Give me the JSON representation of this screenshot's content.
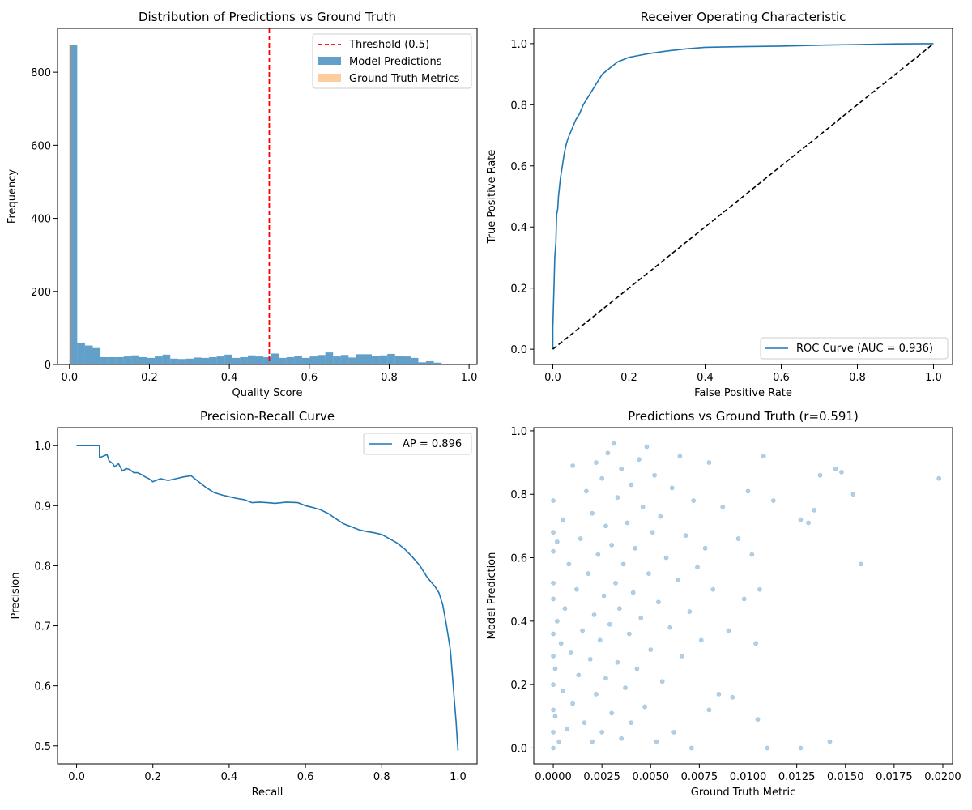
{
  "chart_data": [
    {
      "type": "bar",
      "title": "Distribution of Predictions vs Ground Truth",
      "xlabel": "Quality Score",
      "ylabel": "Frequency",
      "xlim": [
        -0.03,
        1.02
      ],
      "ylim": [
        0,
        920
      ],
      "xticks": [
        "0.0",
        "0.2",
        "0.4",
        "0.6",
        "0.8",
        "1.0"
      ],
      "yticks": [
        "0",
        "200",
        "400",
        "600",
        "800"
      ],
      "bin_width": 0.0194,
      "series": [
        {
          "name": "Model Predictions",
          "color": "#1f77b4",
          "bin_start": 0.0,
          "values": [
            875,
            60,
            52,
            45,
            20,
            20,
            20,
            22,
            25,
            20,
            18,
            22,
            27,
            16,
            15,
            16,
            19,
            18,
            20,
            22,
            27,
            18,
            20,
            25,
            22,
            20,
            30,
            18,
            20,
            24,
            18,
            22,
            26,
            33,
            22,
            26,
            19,
            28,
            28,
            23,
            25,
            29,
            24,
            22,
            18,
            6,
            9,
            5
          ]
        },
        {
          "name": "Ground Truth Metrics",
          "color": "#ff7f0e",
          "bin_start": 0.0,
          "bin_width": 0.0041,
          "values": [
            875
          ]
        }
      ],
      "reference_line": {
        "label": "Threshold (0.5)",
        "x": 0.5,
        "color": "#ff0000"
      },
      "legend": "upper right",
      "grid": false
    },
    {
      "type": "line",
      "title": "Receiver Operating Characteristic",
      "xlabel": "False Positive Rate",
      "ylabel": "True Positive Rate",
      "xlim": [
        -0.05,
        1.05
      ],
      "ylim": [
        -0.05,
        1.05
      ],
      "xticks": [
        "0.0",
        "0.2",
        "0.4",
        "0.6",
        "0.8",
        "1.0"
      ],
      "yticks": [
        "0.0",
        "0.2",
        "0.4",
        "0.6",
        "0.8",
        "1.0"
      ],
      "series": [
        {
          "name": "ROC Curve (AUC = 0.936)",
          "color": "#1f77b4",
          "x": [
            0,
            0,
            0.003,
            0.005,
            0.008,
            0.01,
            0.013,
            0.015,
            0.02,
            0.025,
            0.03,
            0.035,
            0.04,
            0.05,
            0.06,
            0.07,
            0.08,
            0.09,
            0.1,
            0.11,
            0.12,
            0.13,
            0.15,
            0.17,
            0.2,
            0.22,
            0.25,
            0.3,
            0.35,
            0.4,
            0.5,
            0.6,
            0.7,
            0.8,
            0.9,
            1.0
          ],
          "y": [
            0,
            0.07,
            0.2,
            0.3,
            0.35,
            0.44,
            0.46,
            0.5,
            0.56,
            0.6,
            0.64,
            0.67,
            0.69,
            0.72,
            0.75,
            0.77,
            0.8,
            0.82,
            0.84,
            0.86,
            0.88,
            0.9,
            0.92,
            0.94,
            0.955,
            0.96,
            0.967,
            0.976,
            0.983,
            0.988,
            0.99,
            0.992,
            0.995,
            0.997,
            0.999,
            1.0
          ]
        },
        {
          "name": "",
          "color": "#000000",
          "dashed": true,
          "x": [
            0,
            1
          ],
          "y": [
            0,
            1
          ]
        }
      ],
      "legend": "lower right",
      "grid": false
    },
    {
      "type": "line",
      "title": "Precision-Recall Curve",
      "xlabel": "Recall",
      "ylabel": "Precision",
      "xlim": [
        -0.05,
        1.05
      ],
      "ylim": [
        0.47,
        1.03
      ],
      "xticks": [
        "0.0",
        "0.2",
        "0.4",
        "0.6",
        "0.8",
        "1.0"
      ],
      "yticks": [
        "0.5",
        "0.6",
        "0.7",
        "0.8",
        "0.9",
        "1.0"
      ],
      "series": [
        {
          "name": "AP = 0.896",
          "color": "#1f77b4",
          "x": [
            0,
            0.06,
            0.06,
            0.08,
            0.085,
            0.095,
            0.1,
            0.11,
            0.12,
            0.13,
            0.14,
            0.15,
            0.16,
            0.17,
            0.18,
            0.19,
            0.2,
            0.22,
            0.24,
            0.26,
            0.28,
            0.3,
            0.31,
            0.33,
            0.34,
            0.36,
            0.38,
            0.4,
            0.42,
            0.44,
            0.46,
            0.48,
            0.5,
            0.52,
            0.55,
            0.58,
            0.6,
            0.62,
            0.64,
            0.66,
            0.68,
            0.7,
            0.72,
            0.74,
            0.76,
            0.78,
            0.8,
            0.82,
            0.84,
            0.86,
            0.88,
            0.9,
            0.92,
            0.94,
            0.95,
            0.96,
            0.97,
            0.98,
            0.985,
            0.99,
            0.995,
            0.998,
            1.0
          ],
          "y": [
            1.0,
            1.0,
            0.98,
            0.985,
            0.975,
            0.97,
            0.965,
            0.97,
            0.958,
            0.962,
            0.96,
            0.955,
            0.955,
            0.952,
            0.948,
            0.945,
            0.94,
            0.945,
            0.942,
            0.945,
            0.948,
            0.95,
            0.945,
            0.935,
            0.93,
            0.922,
            0.918,
            0.915,
            0.912,
            0.91,
            0.905,
            0.906,
            0.905,
            0.904,
            0.906,
            0.905,
            0.9,
            0.897,
            0.893,
            0.887,
            0.878,
            0.87,
            0.865,
            0.86,
            0.857,
            0.855,
            0.852,
            0.845,
            0.838,
            0.828,
            0.815,
            0.8,
            0.78,
            0.765,
            0.755,
            0.735,
            0.7,
            0.66,
            0.62,
            0.58,
            0.54,
            0.51,
            0.492
          ]
        }
      ],
      "legend": "upper right",
      "grid": false
    },
    {
      "type": "scatter",
      "title": "Predictions vs Ground Truth (r=0.591)",
      "xlabel": "Ground Truth Metric",
      "ylabel": "Model Prediction",
      "xlim": [
        -0.001,
        0.0205
      ],
      "ylim": [
        -0.05,
        1.01
      ],
      "xticks": [
        "0.0000",
        "0.0025",
        "0.0050",
        "0.0075",
        "0.0100",
        "0.0125",
        "0.0150",
        "0.0175",
        "0.0200"
      ],
      "yticks": [
        "0.0",
        "0.2",
        "0.4",
        "0.6",
        "0.8",
        "1.0"
      ],
      "series": [
        {
          "name": "",
          "color": "#1f77b4",
          "alpha": 0.35,
          "points": [
            [
              0,
              0.0
            ],
            [
              0,
              0.05
            ],
            [
              0,
              0.12
            ],
            [
              0,
              0.2
            ],
            [
              0,
              0.29
            ],
            [
              0,
              0.36
            ],
            [
              0,
              0.47
            ],
            [
              0,
              0.52
            ],
            [
              0,
              0.62
            ],
            [
              0,
              0.68
            ],
            [
              0,
              0.78
            ],
            [
              0.0001,
              0.1
            ],
            [
              0.0001,
              0.25
            ],
            [
              0.0002,
              0.4
            ],
            [
              0.0002,
              0.65
            ],
            [
              0.0003,
              0.02
            ],
            [
              0.0004,
              0.33
            ],
            [
              0.0005,
              0.18
            ],
            [
              0.0005,
              0.72
            ],
            [
              0.0006,
              0.44
            ],
            [
              0.0007,
              0.06
            ],
            [
              0.0008,
              0.58
            ],
            [
              0.0009,
              0.3
            ],
            [
              0.001,
              0.89
            ],
            [
              0.001,
              0.14
            ],
            [
              0.0012,
              0.5
            ],
            [
              0.0013,
              0.23
            ],
            [
              0.0014,
              0.66
            ],
            [
              0.0015,
              0.37
            ],
            [
              0.0016,
              0.08
            ],
            [
              0.0017,
              0.81
            ],
            [
              0.0018,
              0.55
            ],
            [
              0.0019,
              0.28
            ],
            [
              0.002,
              0.74
            ],
            [
              0.002,
              0.02
            ],
            [
              0.0021,
              0.42
            ],
            [
              0.0022,
              0.9
            ],
            [
              0.0022,
              0.17
            ],
            [
              0.0023,
              0.61
            ],
            [
              0.0024,
              0.34
            ],
            [
              0.0025,
              0.85
            ],
            [
              0.0025,
              0.05
            ],
            [
              0.0026,
              0.48
            ],
            [
              0.0027,
              0.7
            ],
            [
              0.0027,
              0.22
            ],
            [
              0.0028,
              0.93
            ],
            [
              0.0029,
              0.39
            ],
            [
              0.003,
              0.64
            ],
            [
              0.003,
              0.11
            ],
            [
              0.0031,
              0.96
            ],
            [
              0.0032,
              0.52
            ],
            [
              0.0033,
              0.27
            ],
            [
              0.0033,
              0.79
            ],
            [
              0.0034,
              0.44
            ],
            [
              0.0035,
              0.88
            ],
            [
              0.0035,
              0.03
            ],
            [
              0.0036,
              0.58
            ],
            [
              0.0037,
              0.19
            ],
            [
              0.0038,
              0.71
            ],
            [
              0.0039,
              0.36
            ],
            [
              0.004,
              0.83
            ],
            [
              0.004,
              0.08
            ],
            [
              0.0041,
              0.49
            ],
            [
              0.0042,
              0.63
            ],
            [
              0.0043,
              0.25
            ],
            [
              0.0044,
              0.91
            ],
            [
              0.0045,
              0.41
            ],
            [
              0.0046,
              0.76
            ],
            [
              0.0047,
              0.13
            ],
            [
              0.0048,
              0.95
            ],
            [
              0.0049,
              0.55
            ],
            [
              0.005,
              0.31
            ],
            [
              0.0051,
              0.68
            ],
            [
              0.0052,
              0.86
            ],
            [
              0.0053,
              0.02
            ],
            [
              0.0054,
              0.46
            ],
            [
              0.0055,
              0.73
            ],
            [
              0.0056,
              0.21
            ],
            [
              0.0058,
              0.6
            ],
            [
              0.006,
              0.38
            ],
            [
              0.0061,
              0.82
            ],
            [
              0.0062,
              0.05
            ],
            [
              0.0064,
              0.53
            ],
            [
              0.0065,
              0.92
            ],
            [
              0.0066,
              0.29
            ],
            [
              0.0068,
              0.67
            ],
            [
              0.007,
              0.43
            ],
            [
              0.0071,
              0.0
            ],
            [
              0.0072,
              0.78
            ],
            [
              0.0074,
              0.57
            ],
            [
              0.0076,
              0.34
            ],
            [
              0.0078,
              0.63
            ],
            [
              0.008,
              0.9
            ],
            [
              0.008,
              0.12
            ],
            [
              0.0082,
              0.5
            ],
            [
              0.0085,
              0.17
            ],
            [
              0.0087,
              0.76
            ],
            [
              0.009,
              0.37
            ],
            [
              0.0092,
              0.16
            ],
            [
              0.0095,
              0.66
            ],
            [
              0.0098,
              0.47
            ],
            [
              0.01,
              0.81
            ],
            [
              0.0102,
              0.61
            ],
            [
              0.0104,
              0.33
            ],
            [
              0.0105,
              0.09
            ],
            [
              0.0106,
              0.5
            ],
            [
              0.0108,
              0.92
            ],
            [
              0.011,
              0.0
            ],
            [
              0.0113,
              0.78
            ],
            [
              0.0127,
              0.72
            ],
            [
              0.0127,
              0.0
            ],
            [
              0.0131,
              0.71
            ],
            [
              0.0134,
              0.75
            ],
            [
              0.0137,
              0.86
            ],
            [
              0.0142,
              0.02
            ],
            [
              0.0145,
              0.88
            ],
            [
              0.0148,
              0.87
            ],
            [
              0.0154,
              0.8
            ],
            [
              0.0158,
              0.58
            ],
            [
              0.0198,
              0.85
            ]
          ]
        }
      ],
      "grid": false
    }
  ]
}
